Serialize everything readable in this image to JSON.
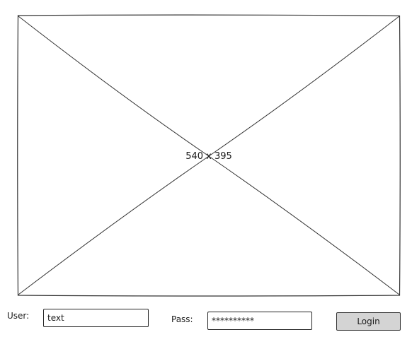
{
  "image_placeholder": {
    "caption": "540 x 395"
  },
  "login_form": {
    "user_label": "User:",
    "user_value": "text",
    "pass_label": "Pass:",
    "pass_value": "**********",
    "login_label": "Login"
  }
}
